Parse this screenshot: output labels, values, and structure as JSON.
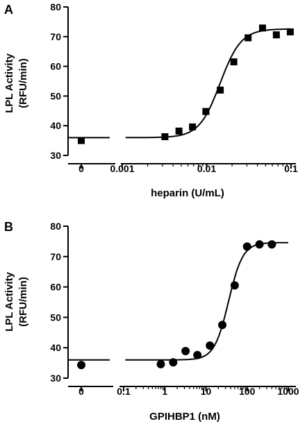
{
  "chart_data": [
    {
      "panel": "A",
      "type": "scatter",
      "ylabel": [
        "LPL Activity",
        "(RFU/min)"
      ],
      "xlabel": "heparin (U/mL)",
      "x_scale": "log",
      "x_break": true,
      "xlim": [
        0.001,
        0.1
      ],
      "ylim": [
        30,
        80
      ],
      "y_ticks": [
        "30",
        "40",
        "50",
        "60",
        "70",
        "80"
      ],
      "x_ticks": [
        "0",
        "0.001",
        "0.01",
        "0.1"
      ],
      "zero_point": {
        "x": 0,
        "y": 35
      },
      "points": [
        {
          "x": 0.0032,
          "y": 36.3
        },
        {
          "x": 0.0047,
          "y": 38.2
        },
        {
          "x": 0.0068,
          "y": 39.6
        },
        {
          "x": 0.0098,
          "y": 44.8
        },
        {
          "x": 0.0145,
          "y": 52.0
        },
        {
          "x": 0.021,
          "y": 61.5
        },
        {
          "x": 0.031,
          "y": 69.6
        },
        {
          "x": 0.046,
          "y": 72.9
        },
        {
          "x": 0.067,
          "y": 70.6
        },
        {
          "x": 0.098,
          "y": 71.6
        }
      ],
      "fit": {
        "bottom": 36.0,
        "top": 72.6,
        "log_ec50": -1.84,
        "hill": 3.5
      },
      "marker": "square",
      "grid": false
    },
    {
      "panel": "B",
      "type": "scatter",
      "ylabel": [
        "LPL Activity",
        "(RFU/min)"
      ],
      "xlabel": "GPIHBP1 (nM)",
      "x_scale": "log",
      "x_break": true,
      "xlim": [
        0.1,
        1000
      ],
      "ylim": [
        30,
        80
      ],
      "y_ticks": [
        "30",
        "40",
        "50",
        "60",
        "70",
        "80"
      ],
      "x_ticks": [
        "0",
        "0.1",
        "1",
        "10",
        "100",
        "1000"
      ],
      "zero_point": {
        "x": 0,
        "y": 34.3
      },
      "points": [
        {
          "x": 0.8,
          "y": 34.6
        },
        {
          "x": 1.6,
          "y": 35.2
        },
        {
          "x": 3.2,
          "y": 38.9
        },
        {
          "x": 6.2,
          "y": 37.6
        },
        {
          "x": 12.5,
          "y": 40.7
        },
        {
          "x": 25,
          "y": 47.5
        },
        {
          "x": 50,
          "y": 60.5
        },
        {
          "x": 100,
          "y": 73.3
        },
        {
          "x": 200,
          "y": 74.0
        },
        {
          "x": 400,
          "y": 74.0
        }
      ],
      "fit": {
        "bottom": 36.0,
        "top": 74.6,
        "log_ec50": 1.55,
        "hill": 2.5
      },
      "marker": "circle",
      "grid": false
    }
  ]
}
